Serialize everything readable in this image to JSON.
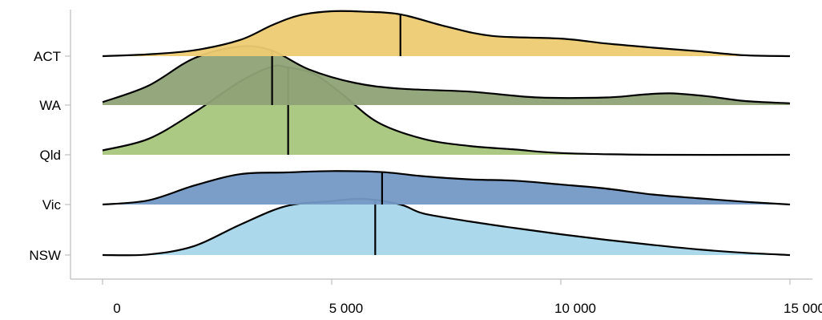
{
  "chart_data": {
    "type": "ridgeline",
    "title": "",
    "xlabel": "",
    "ylabel": "",
    "xlim": [
      0,
      15000
    ],
    "xticks": [
      0,
      5000,
      10000,
      15000
    ],
    "xtick_labels": [
      "0",
      "5 000",
      "10 000",
      "15 000"
    ],
    "grid": false,
    "legend": "none",
    "series": [
      {
        "name": "ACT",
        "color": "#eecb72",
        "median": 6500,
        "points": [
          [
            0,
            0.0
          ],
          [
            1000,
            0.04
          ],
          [
            2000,
            0.13
          ],
          [
            3000,
            0.36
          ],
          [
            3700,
            0.69
          ],
          [
            4300,
            0.91
          ],
          [
            5000,
            1.0
          ],
          [
            5700,
            0.99
          ],
          [
            6500,
            0.93
          ],
          [
            7500,
            0.66
          ],
          [
            8500,
            0.45
          ],
          [
            10000,
            0.39
          ],
          [
            11000,
            0.28
          ],
          [
            12000,
            0.19
          ],
          [
            13000,
            0.11
          ],
          [
            14000,
            0.02
          ],
          [
            15000,
            0.0
          ]
        ]
      },
      {
        "name": "WA",
        "color": "#8fa276",
        "median": 3700,
        "points": [
          [
            0,
            0.05
          ],
          [
            1000,
            0.33
          ],
          [
            2000,
            0.8
          ],
          [
            3000,
            1.0
          ],
          [
            3700,
            0.93
          ],
          [
            4500,
            0.61
          ],
          [
            5500,
            0.38
          ],
          [
            6500,
            0.28
          ],
          [
            8000,
            0.23
          ],
          [
            9500,
            0.13
          ],
          [
            11000,
            0.13
          ],
          [
            11800,
            0.18
          ],
          [
            12400,
            0.2
          ],
          [
            13200,
            0.15
          ],
          [
            14000,
            0.07
          ],
          [
            15000,
            0.03
          ]
        ]
      },
      {
        "name": "Qld",
        "color": "#a6c67c",
        "median": 4050,
        "points": [
          [
            0,
            0.05
          ],
          [
            1000,
            0.18
          ],
          [
            2000,
            0.48
          ],
          [
            3000,
            0.83
          ],
          [
            3700,
            1.0
          ],
          [
            4050,
            0.99
          ],
          [
            4600,
            0.92
          ],
          [
            5200,
            0.7
          ],
          [
            6000,
            0.37
          ],
          [
            7000,
            0.18
          ],
          [
            8000,
            0.1
          ],
          [
            9000,
            0.06
          ],
          [
            10000,
            0.02
          ],
          [
            12000,
            0.0
          ],
          [
            15000,
            0.0
          ]
        ]
      },
      {
        "name": "Vic",
        "color": "#7399c5",
        "median": 6100,
        "points": [
          [
            0,
            0.0
          ],
          [
            1000,
            0.12
          ],
          [
            2000,
            0.55
          ],
          [
            3000,
            0.88
          ],
          [
            4000,
            0.93
          ],
          [
            5000,
            0.97
          ],
          [
            6100,
            0.94
          ],
          [
            7000,
            0.82
          ],
          [
            8000,
            0.73
          ],
          [
            9000,
            0.69
          ],
          [
            10000,
            0.58
          ],
          [
            11000,
            0.46
          ],
          [
            12000,
            0.29
          ],
          [
            13000,
            0.18
          ],
          [
            14000,
            0.08
          ],
          [
            15000,
            0.0
          ]
        ]
      },
      {
        "name": "NSW",
        "color": "#a6d6e9",
        "median": 5950,
        "points": [
          [
            0,
            0.0
          ],
          [
            1000,
            0.01
          ],
          [
            2000,
            0.16
          ],
          [
            3000,
            0.54
          ],
          [
            4000,
            0.87
          ],
          [
            5000,
            0.96
          ],
          [
            5700,
            1.0
          ],
          [
            6500,
            0.9
          ],
          [
            7000,
            0.74
          ],
          [
            8000,
            0.6
          ],
          [
            9000,
            0.48
          ],
          [
            10000,
            0.37
          ],
          [
            11000,
            0.27
          ],
          [
            12000,
            0.18
          ],
          [
            13000,
            0.1
          ],
          [
            14000,
            0.04
          ],
          [
            15000,
            0.0
          ]
        ]
      }
    ]
  }
}
